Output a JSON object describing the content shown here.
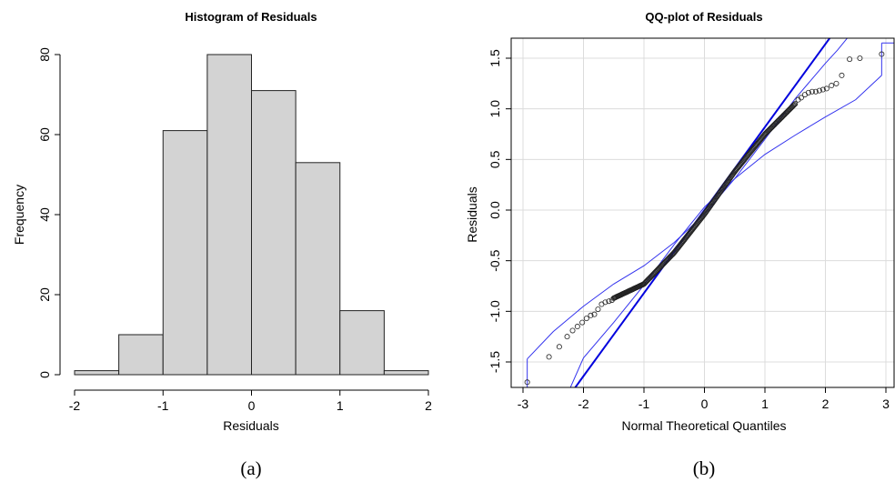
{
  "chart_data": [
    {
      "type": "bar",
      "panel": "(a)",
      "title": "Histogram of Residuals",
      "xlabel": "Residuals",
      "ylabel": "Frequency",
      "bin_edges": [
        -2,
        -1.5,
        -1,
        -0.5,
        0,
        0.5,
        1,
        1.5,
        2
      ],
      "values": [
        1,
        10,
        61,
        80,
        71,
        53,
        16,
        1
      ],
      "xlim": [
        -2,
        2
      ],
      "ylim": [
        0,
        80
      ],
      "xticks": [
        -2,
        -1,
        0,
        1,
        2
      ],
      "yticks": [
        0,
        20,
        40,
        60,
        80
      ],
      "bar_color": "#d3d3d3",
      "grid": false
    },
    {
      "type": "scatter",
      "panel": "(b)",
      "title": "QQ-plot of Residuals",
      "xlabel": "Normal Theoretical Quantiles",
      "ylabel": "Residuals",
      "xlim": [
        -3,
        3
      ],
      "ylim": [
        -1.8,
        1.6
      ],
      "xticks": [
        -3,
        -2,
        -1,
        0,
        1,
        2,
        3
      ],
      "yticks": [
        -1.5,
        -1.0,
        -0.5,
        0.0,
        0.5,
        1.0,
        1.5
      ],
      "ytick_labels": [
        "-1.5",
        "-1.0",
        "-0.5",
        "0.0",
        "0.5",
        "1.0",
        "1.5"
      ],
      "grid": true,
      "reference_line": {
        "intercept": 0.0,
        "slope": 0.82,
        "color": "#0000dd"
      },
      "envelope": {
        "color": "#3333ee",
        "upper": [
          [
            -2.93,
            -1.47
          ],
          [
            -2.5,
            -1.2
          ],
          [
            -2.0,
            -0.95
          ],
          [
            -1.5,
            -0.73
          ],
          [
            -1.0,
            -0.55
          ],
          [
            -0.5,
            -0.32
          ],
          [
            0.0,
            -0.04
          ],
          [
            0.5,
            0.31
          ],
          [
            1.0,
            0.7
          ],
          [
            1.5,
            1.1
          ],
          [
            2.0,
            1.45
          ],
          [
            2.2,
            1.58
          ],
          [
            2.5,
            1.8
          ]
        ],
        "lower": [
          [
            -2.4,
            -2.0
          ],
          [
            -2.0,
            -1.46
          ],
          [
            -1.5,
            -1.11
          ],
          [
            -1.0,
            -0.74
          ],
          [
            -0.5,
            -0.34
          ],
          [
            0.0,
            0.03
          ],
          [
            0.5,
            0.31
          ],
          [
            1.0,
            0.55
          ],
          [
            1.5,
            0.74
          ],
          [
            2.0,
            0.92
          ],
          [
            2.5,
            1.09
          ],
          [
            2.93,
            1.33
          ]
        ],
        "upper_tail": [
          [
            2.93,
            1.33
          ],
          [
            2.93,
            1.65
          ]
        ],
        "lower_tail": [
          [
            -2.93,
            -1.47
          ],
          [
            -2.93,
            -1.85
          ]
        ]
      },
      "points": {
        "tail_low": [
          [
            -2.93,
            -1.7
          ],
          [
            -2.57,
            -1.45
          ],
          [
            -2.4,
            -1.35
          ],
          [
            -2.27,
            -1.25
          ],
          [
            -2.18,
            -1.19
          ],
          [
            -2.1,
            -1.15
          ],
          [
            -2.02,
            -1.11
          ],
          [
            -1.95,
            -1.07
          ],
          [
            -1.88,
            -1.04
          ],
          [
            -1.82,
            -1.03
          ],
          [
            -1.76,
            -0.98
          ],
          [
            -1.7,
            -0.93
          ],
          [
            -1.64,
            -0.91
          ],
          [
            -1.58,
            -0.9
          ],
          [
            -1.53,
            -0.89
          ]
        ],
        "body": [
          [
            -1.5,
            -0.87
          ],
          [
            -1.0,
            -0.73
          ],
          [
            -0.5,
            -0.42
          ],
          [
            0.0,
            -0.04
          ],
          [
            0.5,
            0.38
          ],
          [
            1.0,
            0.75
          ],
          [
            1.5,
            1.05
          ]
        ],
        "body_count": 240,
        "tail_high": [
          [
            1.55,
            1.09
          ],
          [
            1.6,
            1.11
          ],
          [
            1.66,
            1.14
          ],
          [
            1.72,
            1.16
          ],
          [
            1.78,
            1.17
          ],
          [
            1.84,
            1.17
          ],
          [
            1.9,
            1.18
          ],
          [
            1.96,
            1.19
          ],
          [
            2.02,
            1.2
          ],
          [
            2.1,
            1.23
          ],
          [
            2.18,
            1.25
          ],
          [
            2.27,
            1.33
          ],
          [
            2.4,
            1.49
          ],
          [
            2.57,
            1.5
          ],
          [
            2.93,
            1.54
          ]
        ]
      }
    }
  ]
}
